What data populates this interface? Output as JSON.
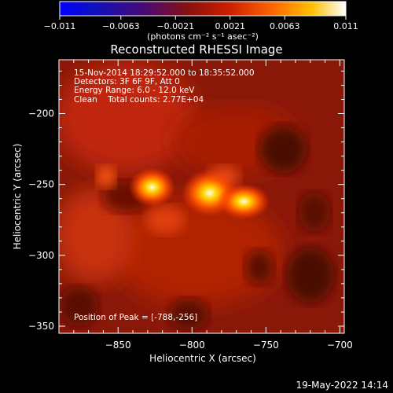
{
  "chart_data": {
    "type": "heatmap",
    "title": "Reconstructed RHESSI Image",
    "xlabel": "Heliocentric X (arcsec)",
    "ylabel": "Heliocentric Y (arcsec)",
    "xlim": [
      -890,
      -697
    ],
    "ylim": [
      -355,
      -162
    ],
    "x_ticks": [
      -850,
      -800,
      -750,
      -700
    ],
    "y_ticks": [
      -350,
      -300,
      -250,
      -200
    ],
    "colorbar": {
      "range": [
        -0.011,
        0.011
      ],
      "ticks": [
        "-0.011",
        "-0.0063",
        "-0.0021",
        "0.0021",
        "0.0063",
        "0.011"
      ],
      "label": "(photons cm⁻² s⁻¹ asec⁻²)"
    },
    "sources": [
      {
        "x": -788,
        "y": -256,
        "peak": 0.011
      },
      {
        "x": -827,
        "y": -252,
        "peak": 0.0085
      },
      {
        "x": -765,
        "y": -262,
        "peak": 0.0075
      }
    ],
    "info_lines": [
      "15-Nov-2014 18:29:52.000 to 18:35:52.000",
      "Detectors: 3F 6F 9F, Att 0",
      "Energy Range: 6.0 - 12.0 keV",
      "Clean    Total counts: 2.77E+04"
    ],
    "peak_label": "Position of Peak = [-788,-256]",
    "timestamp": "19-May-2022 14:14"
  }
}
